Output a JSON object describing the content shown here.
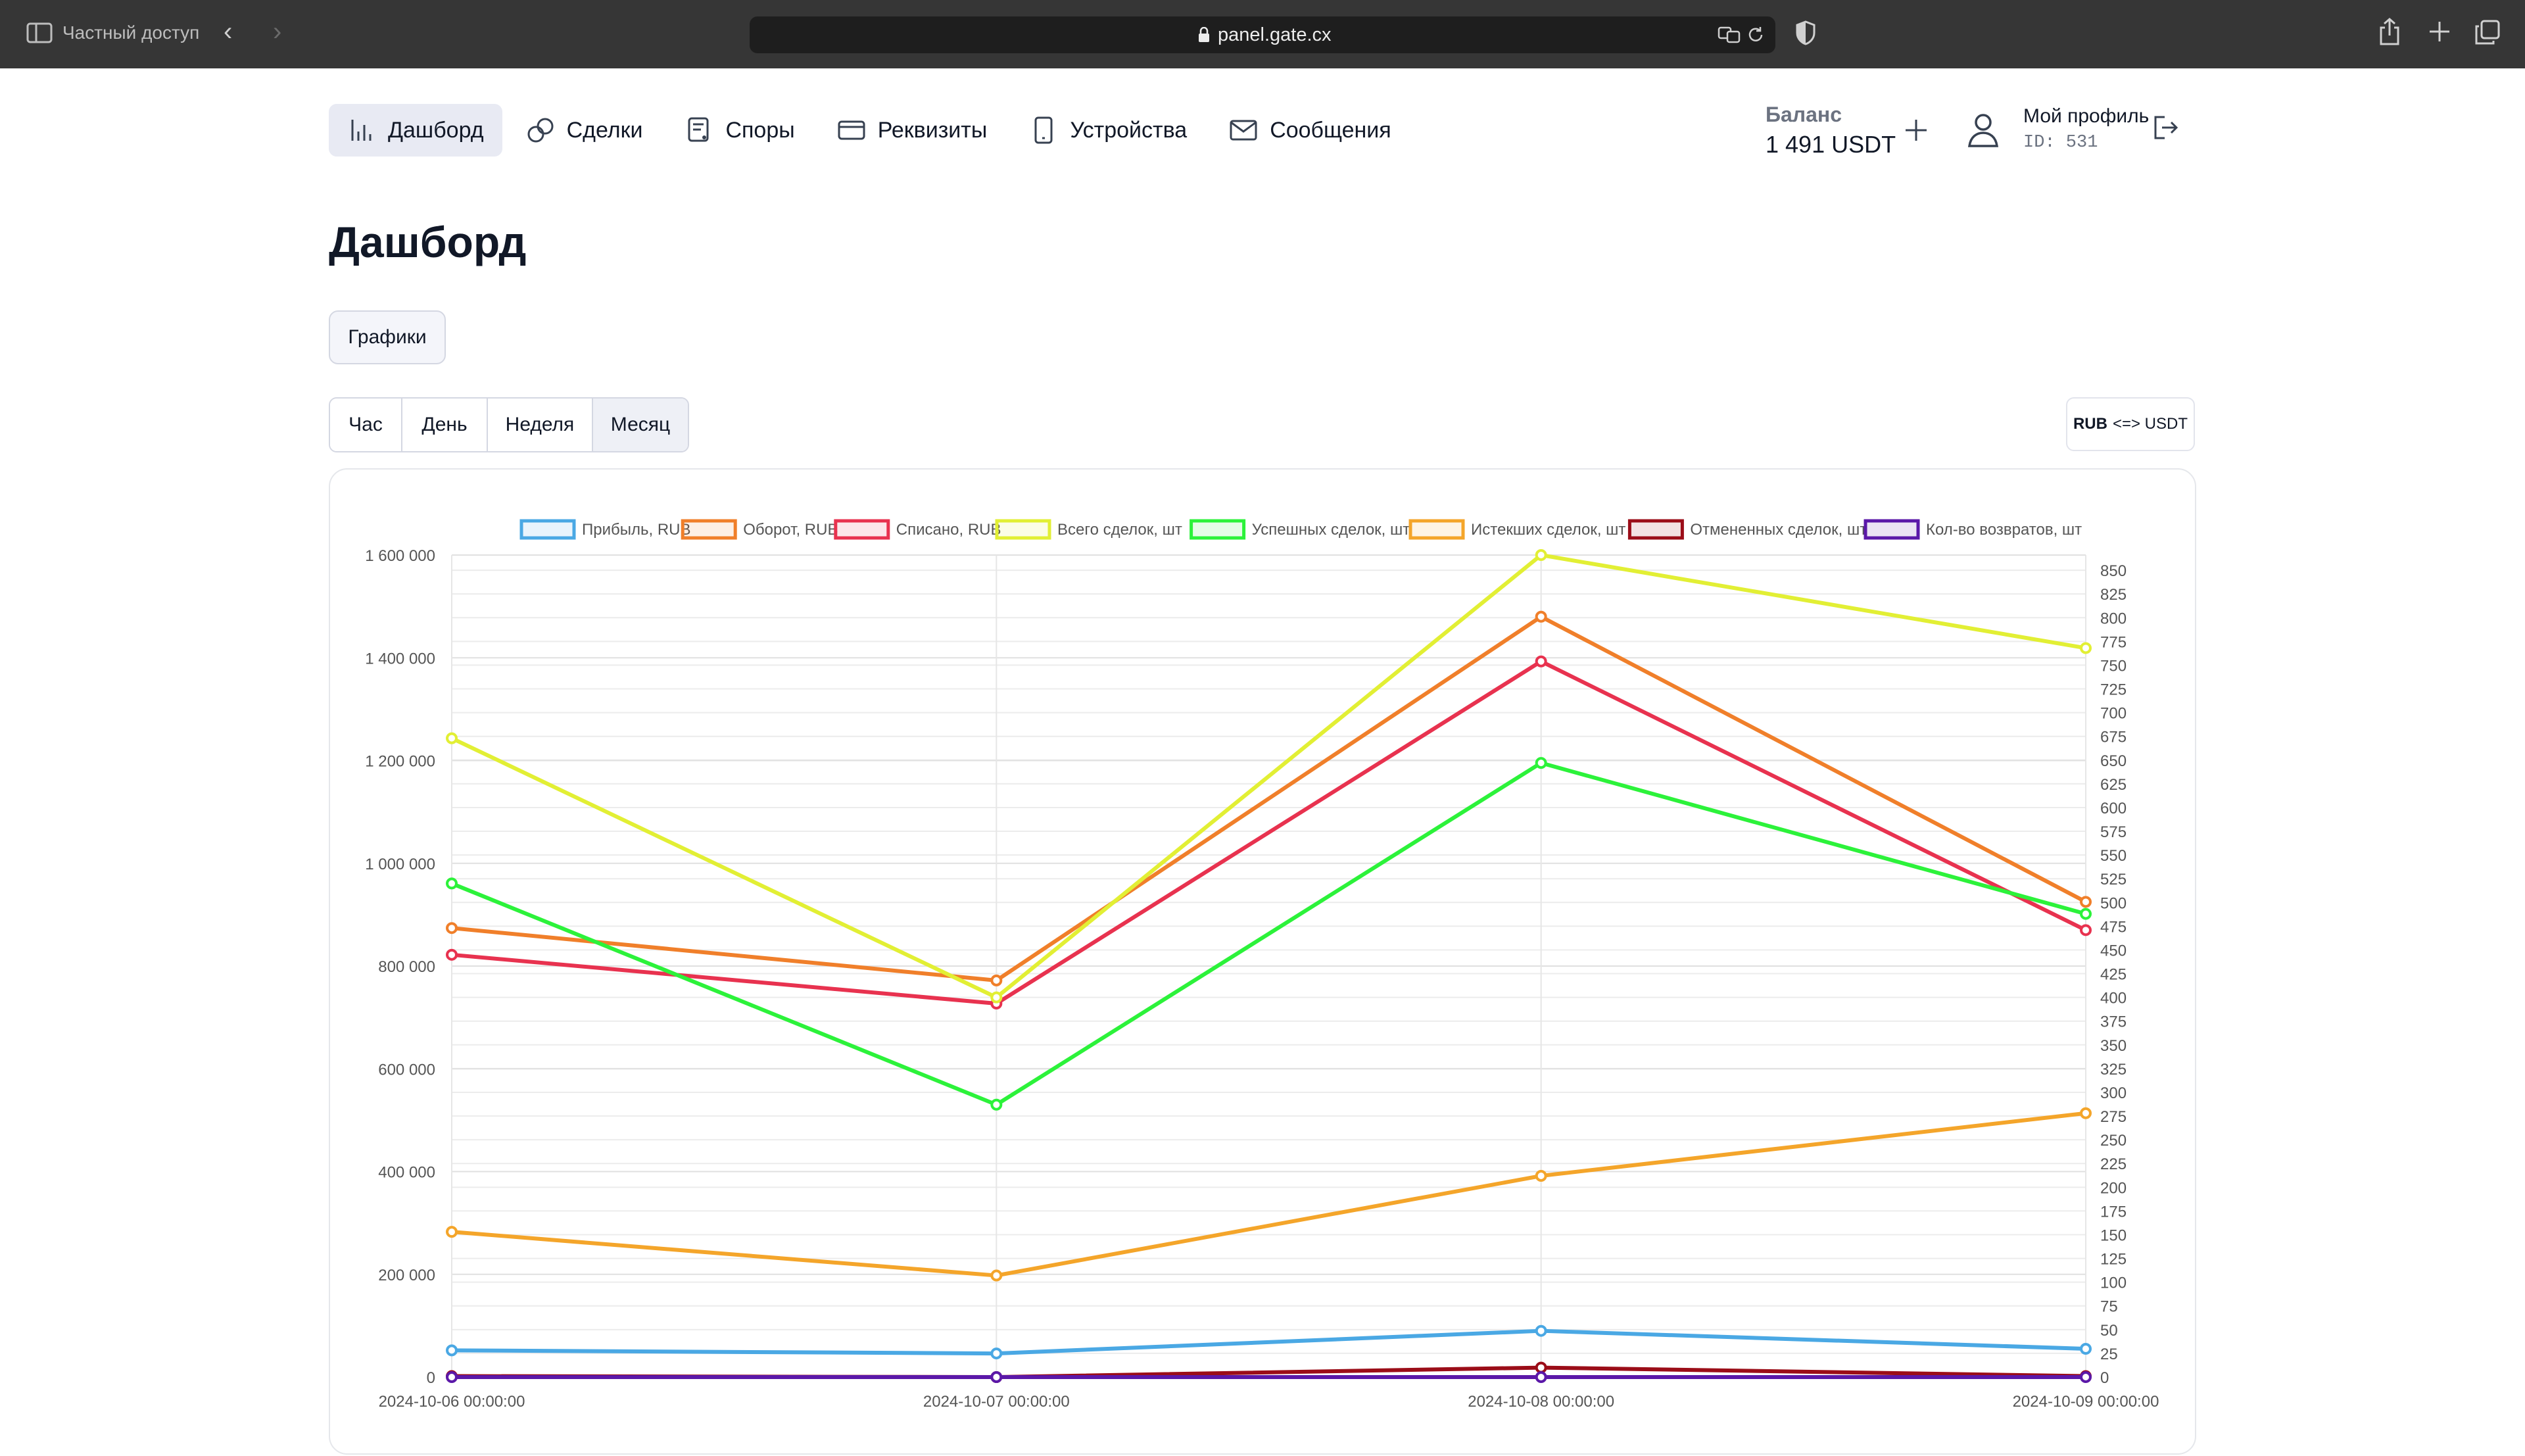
{
  "browser": {
    "private_label": "Частный доступ",
    "url": "panel.gate.cx"
  },
  "nav": {
    "items": [
      {
        "label": "Дашборд",
        "icon": "bar-chart-icon",
        "active": true
      },
      {
        "label": "Сделки",
        "icon": "exchange-icon"
      },
      {
        "label": "Споры",
        "icon": "dispute-icon"
      },
      {
        "label": "Реквизиты",
        "icon": "card-icon"
      },
      {
        "label": "Устройства",
        "icon": "device-icon"
      },
      {
        "label": "Сообщения",
        "icon": "mail-icon"
      }
    ]
  },
  "balance": {
    "label": "Баланс",
    "value": "1 491 USDT"
  },
  "profile": {
    "name": "Мой профиль",
    "id": "ID: 531"
  },
  "page_title": "Дашборд",
  "tabs": {
    "charts": "Графики"
  },
  "periods": [
    "Час",
    "День",
    "Неделя",
    "Месяц"
  ],
  "currency_toggle": {
    "a": "RUB",
    "b": "<=> USDT"
  },
  "colors": {
    "accent_bg": "#e8eaf3",
    "chrome_bg": "#363636"
  },
  "chart_data": {
    "type": "line",
    "x": [
      "2024-10-06 00:00:00",
      "2024-10-07 00:00:00",
      "2024-10-08 00:00:00",
      "2024-10-09 00:00:00"
    ],
    "y_left": {
      "ylim": [
        0,
        1600000
      ],
      "ticks": [
        "0",
        "200 000",
        "400 000",
        "600 000",
        "800 000",
        "1 000 000",
        "1 200 000",
        "1 400 000",
        "1 600 000"
      ]
    },
    "y_right": {
      "ylim": [
        0,
        866
      ],
      "ticks": [
        "0",
        "25",
        "50",
        "75",
        "100",
        "125",
        "150",
        "175",
        "200",
        "225",
        "250",
        "275",
        "300",
        "325",
        "350",
        "375",
        "400",
        "425",
        "450",
        "475",
        "500",
        "525",
        "550",
        "575",
        "600",
        "625",
        "650",
        "675",
        "700",
        "725",
        "750",
        "775",
        "800",
        "825",
        "850"
      ]
    },
    "grid": true,
    "legend_position": "top",
    "series": [
      {
        "name": "Прибыль, RUB",
        "color": "#4aa8e4",
        "axis": "left",
        "values": [
          52000,
          46000,
          90000,
          55000
        ]
      },
      {
        "name": "Оборот, RUB",
        "color": "#f07f2a",
        "axis": "left",
        "values": [
          874000,
          772000,
          1480000,
          925000
        ]
      },
      {
        "name": "Списано, RUB",
        "color": "#e8324f",
        "axis": "left",
        "values": [
          822000,
          727000,
          1393000,
          870000
        ]
      },
      {
        "name": "Всего сделок, шт",
        "color": "#e2ef34",
        "axis": "right",
        "values": [
          673,
          400,
          866,
          768
        ]
      },
      {
        "name": "Успешных сделок, шт",
        "color": "#2cf23a",
        "axis": "right",
        "values": [
          520,
          287,
          647,
          488
        ]
      },
      {
        "name": "Истекших сделок, шт",
        "color": "#f4a52a",
        "axis": "right",
        "values": [
          153,
          107,
          212,
          278
        ]
      },
      {
        "name": "Отмененных сделок, шт",
        "color": "#9b0d18",
        "axis": "right",
        "values": [
          1,
          0,
          10,
          1
        ]
      },
      {
        "name": "Кол-во возвратов, шт",
        "color": "#5b18a8",
        "axis": "right",
        "values": [
          0,
          0,
          0,
          0
        ]
      }
    ]
  }
}
